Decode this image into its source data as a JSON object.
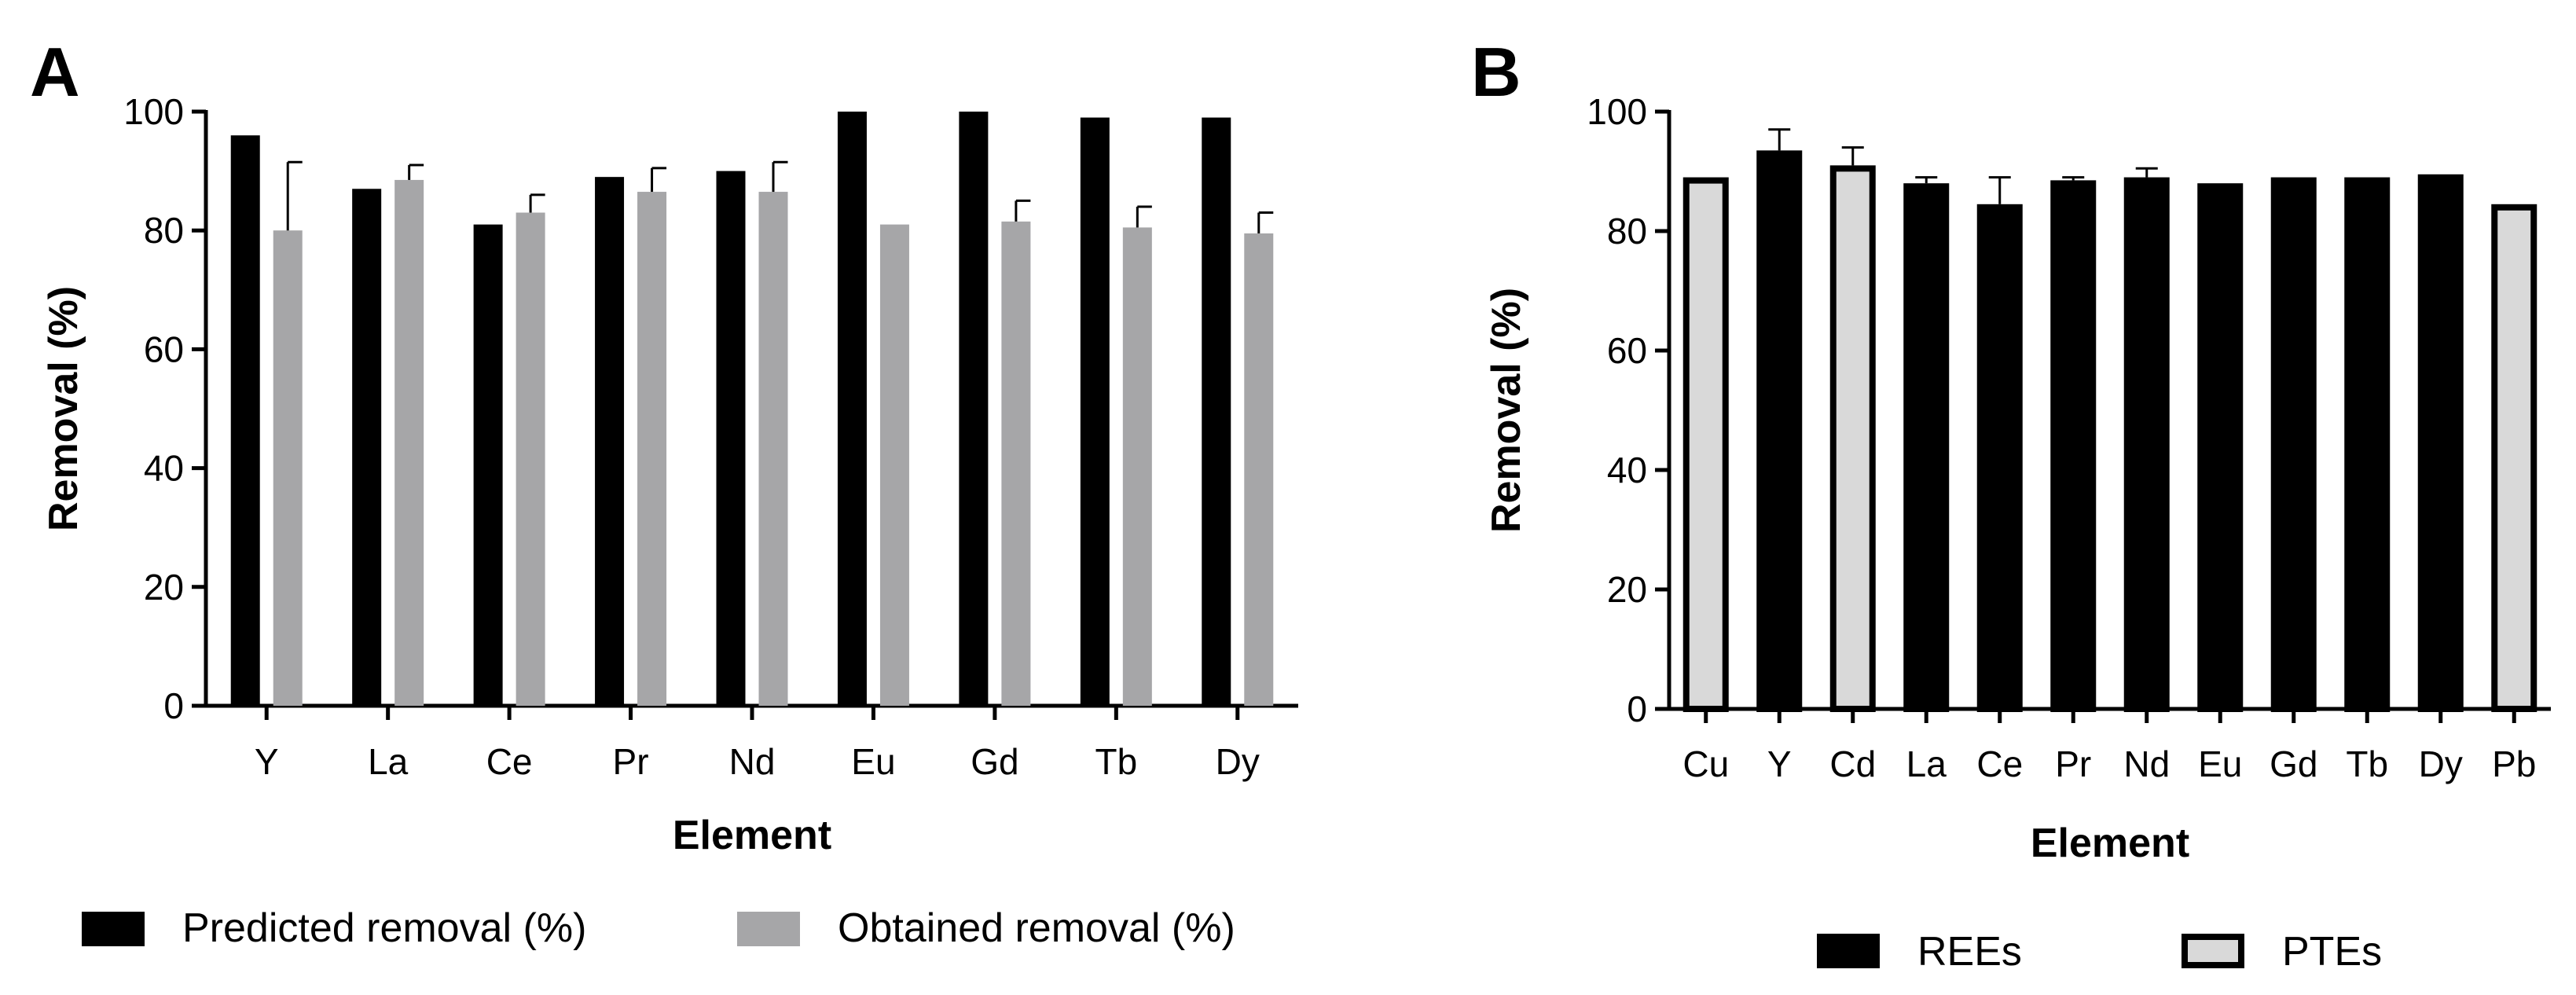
{
  "chart_data": [
    {
      "type": "bar",
      "panel_label": "A",
      "title": "",
      "xlabel": "Element",
      "ylabel": "Removal (%)",
      "ylim": [
        0,
        100
      ],
      "yticks": [
        "0",
        "20",
        "40",
        "60",
        "80",
        "100"
      ],
      "categories": [
        "Y",
        "La",
        "Ce",
        "Pr",
        "Nd",
        "Eu",
        "Gd",
        "Tb",
        "Dy"
      ],
      "series": [
        {
          "name": "Predicted removal (%)",
          "color": "#000000",
          "values": [
            96,
            87,
            81,
            89,
            90,
            100,
            100,
            99,
            99
          ]
        },
        {
          "name": "Obtained removal (%)",
          "color": "#a6a6a8",
          "values": [
            80,
            88.5,
            83,
            86.5,
            86.5,
            81,
            81.5,
            80.5,
            79.5
          ],
          "error": [
            11.5,
            2.5,
            3,
            4,
            5,
            0,
            3.5,
            3.5,
            3.5
          ]
        }
      ],
      "legend": "bottom"
    },
    {
      "type": "bar",
      "panel_label": "B",
      "title": "",
      "xlabel": "Element",
      "ylabel": "Removal (%)",
      "ylim": [
        0,
        100
      ],
      "yticks": [
        "0",
        "20",
        "40",
        "60",
        "80",
        "100"
      ],
      "categories": [
        "Cu",
        "Y",
        "Cd",
        "La",
        "Ce",
        "Pr",
        "Nd",
        "Eu",
        "Gd",
        "Tb",
        "Dy",
        "Pb"
      ],
      "values": [
        89,
        93.5,
        91,
        88,
        84.5,
        88.5,
        89,
        88,
        89,
        89,
        89.5,
        84.5
      ],
      "error": [
        0,
        3.5,
        3,
        1,
        4.5,
        0.5,
        1.5,
        0,
        0,
        0,
        0,
        0
      ],
      "groups": [
        "PTEs",
        "REEs",
        "PTEs",
        "REEs",
        "REEs",
        "REEs",
        "REEs",
        "REEs",
        "REEs",
        "REEs",
        "REEs",
        "PTEs"
      ],
      "legend_entries": [
        {
          "name": "REEs",
          "fill": "#000000"
        },
        {
          "name": "PTEs",
          "fill": "#d9d9d9"
        }
      ],
      "legend": "bottom"
    }
  ]
}
